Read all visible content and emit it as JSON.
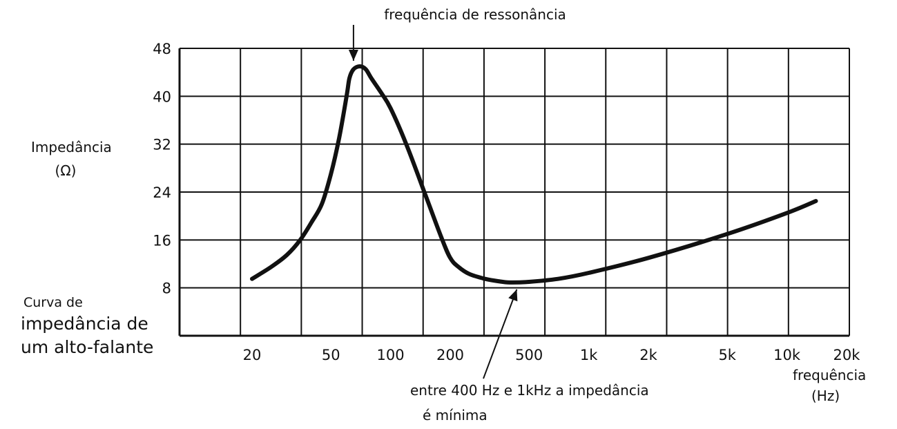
{
  "chart_data": {
    "type": "line",
    "x_scale": "log",
    "xlabel": "frequência",
    "xlabel_unit": "(Hz)",
    "ylabel": "Impedância",
    "ylabel_unit": "(Ω)",
    "caption": [
      "Curva de",
      "impedância de",
      "um alto-falante"
    ],
    "x_tick_labels": [
      "20",
      "50",
      "100",
      "200",
      "500",
      "1k",
      "2k",
      "5k",
      "10k",
      "20k"
    ],
    "x_ticks": [
      20,
      50,
      100,
      200,
      500,
      1000,
      2000,
      5000,
      10000,
      20000
    ],
    "y_ticks": [
      8,
      16,
      24,
      32,
      40,
      48
    ],
    "ylim": [
      0,
      48
    ],
    "grid": true,
    "series": [
      {
        "x": [
          20,
          25,
          30,
          35,
          40,
          45,
          50,
          55,
          60,
          62,
          65,
          70,
          75,
          80,
          90,
          100,
          120,
          150,
          180,
          200,
          220,
          250,
          300,
          350,
          400,
          500,
          700,
          1000,
          2000,
          5000,
          10000,
          14000
        ],
        "y": [
          9.5,
          11.5,
          13.5,
          16,
          19,
          22,
          27,
          33,
          40,
          43,
          44.5,
          45,
          44.5,
          43,
          40.5,
          38,
          32,
          23.5,
          16.5,
          13,
          11.5,
          10.3,
          9.5,
          9.1,
          8.9,
          9.0,
          9.5,
          10.5,
          13,
          17,
          20.5,
          22.5
        ]
      }
    ],
    "annotations": [
      {
        "text": "frequência de ressonância",
        "x": 65,
        "y": 45
      },
      {
        "text": "entre 400 Hz e 1kHz a impedância",
        "text2": "é mínima",
        "x": 400,
        "y": 8.9
      }
    ]
  }
}
